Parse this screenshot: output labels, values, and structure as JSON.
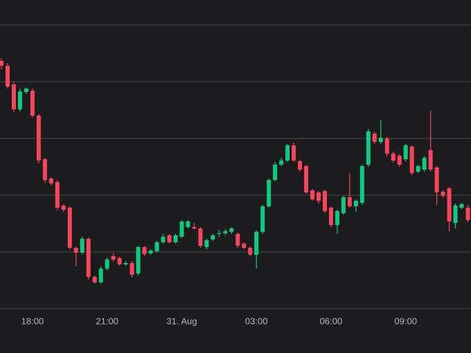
{
  "chart_data": {
    "type": "candlestick",
    "categories": [
      null,
      null,
      null,
      null,
      null,
      "18:00",
      null,
      null,
      null,
      null,
      null,
      null,
      null,
      null,
      null,
      null,
      null,
      "21:00",
      null,
      null,
      null,
      null,
      null,
      null,
      null,
      null,
      null,
      null,
      null,
      "31. Aug",
      null,
      null,
      null,
      null,
      null,
      null,
      null,
      null,
      null,
      null,
      null,
      "03:00",
      null,
      null,
      null,
      null,
      null,
      null,
      null,
      null,
      null,
      null,
      null,
      "06:00",
      null,
      null,
      null,
      null,
      null,
      null,
      null,
      null,
      null,
      null,
      null,
      "09:00",
      null,
      null,
      null,
      null,
      null,
      null,
      null,
      null,
      null,
      null
    ],
    "open": [
      358,
      351,
      324,
      288,
      313,
      315,
      279,
      216,
      188,
      183,
      149,
      146,
      88,
      81,
      101,
      46,
      38,
      58,
      76,
      73,
      64,
      66,
      51,
      89,
      80,
      83,
      96,
      106,
      96,
      104,
      118,
      118,
      116,
      89,
      100,
      108,
      109,
      111,
      108,
      94,
      88,
      78,
      111,
      148,
      186,
      208,
      214,
      236,
      213,
      206,
      171,
      168,
      170,
      146,
      121,
      138,
      161,
      148,
      153,
      208,
      253,
      241,
      246,
      224,
      221,
      216,
      234,
      198,
      201,
      229,
      204,
      169,
      174,
      124,
      146,
      146
    ],
    "high": [
      362,
      355,
      328,
      318,
      320,
      318,
      281,
      218,
      190,
      186,
      151,
      148,
      90,
      104,
      103,
      48,
      61,
      74,
      80,
      75,
      69,
      69,
      91,
      91,
      86,
      98,
      108,
      108,
      108,
      128,
      128,
      124,
      118,
      101,
      108,
      114,
      115,
      118,
      110,
      96,
      90,
      113,
      150,
      188,
      212,
      218,
      238,
      240,
      215,
      208,
      173,
      170,
      172,
      148,
      143,
      163,
      196,
      158,
      208,
      260,
      256,
      273,
      248,
      227,
      223,
      238,
      236,
      208,
      220,
      286,
      206,
      171,
      176,
      152,
      153,
      150
    ],
    "low": [
      346,
      318,
      284,
      285,
      310,
      276,
      210,
      182,
      178,
      142,
      140,
      86,
      61,
      78,
      42,
      36,
      36,
      55,
      68,
      62,
      62,
      45,
      48,
      76,
      78,
      81,
      94,
      94,
      94,
      102,
      116,
      114,
      88,
      86,
      98,
      104,
      106,
      108,
      88,
      86,
      76,
      58,
      108,
      146,
      184,
      206,
      212,
      212,
      198,
      166,
      156,
      152,
      138,
      118,
      108,
      136,
      146,
      140,
      150,
      205,
      238,
      238,
      220,
      211,
      205,
      213,
      193,
      196,
      198,
      198,
      150,
      160,
      112,
      116,
      144,
      125
    ],
    "close": [
      351,
      321,
      288,
      314,
      318,
      279,
      214,
      186,
      181,
      146,
      143,
      88,
      81,
      101,
      46,
      38,
      58,
      71,
      71,
      64,
      66,
      49,
      89,
      79,
      84,
      96,
      104,
      96,
      106,
      126,
      126,
      116,
      91,
      99,
      106,
      109,
      112,
      116,
      91,
      88,
      78,
      111,
      148,
      186,
      208,
      214,
      236,
      214,
      201,
      168,
      158,
      156,
      141,
      121,
      141,
      161,
      148,
      156,
      206,
      256,
      241,
      247,
      224,
      214,
      208,
      236,
      196,
      206,
      218,
      201,
      168,
      163,
      126,
      149,
      151,
      128
    ],
    "up_color": "#0ecb81",
    "down_color": "#f6465d",
    "ylim": [
      0,
      446
    ],
    "yticks": [
      0,
      82,
      164,
      246,
      328,
      410
    ],
    "grid": true
  }
}
